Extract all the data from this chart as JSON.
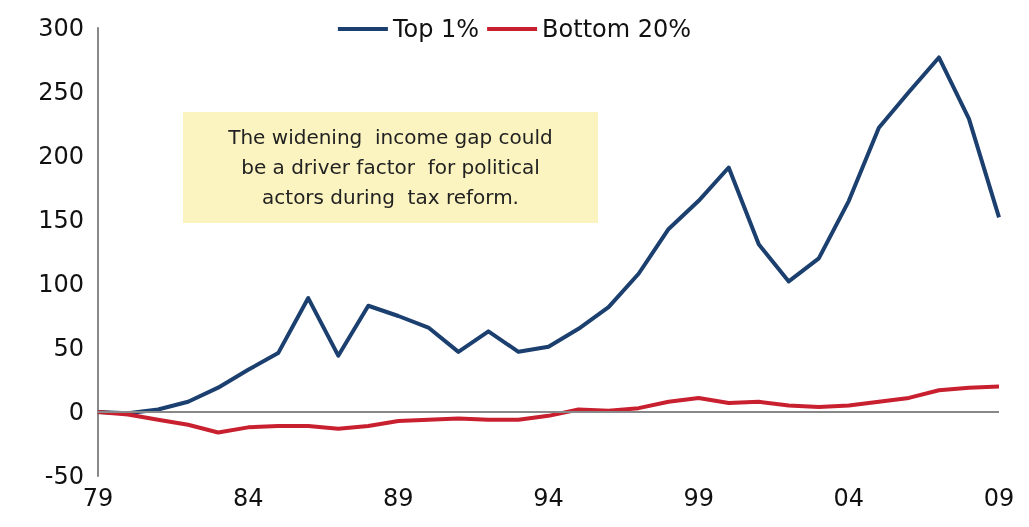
{
  "chart_data": {
    "type": "line",
    "categories": [
      "79",
      null,
      null,
      null,
      null,
      "84",
      null,
      null,
      null,
      null,
      "89",
      null,
      null,
      null,
      null,
      "94",
      null,
      null,
      null,
      null,
      "99",
      null,
      null,
      null,
      null,
      "04",
      null,
      null,
      null,
      null,
      "09"
    ],
    "series": [
      {
        "name": "Top 1%",
        "color": "#1b3f6e",
        "values": [
          0,
          -1,
          2,
          8,
          19,
          33,
          46,
          89,
          44,
          83,
          75,
          66,
          47,
          63,
          47,
          51,
          65,
          82,
          108,
          143,
          165,
          191,
          131,
          102,
          120,
          165,
          222,
          250,
          277,
          229,
          152
        ]
      },
      {
        "name": "Bottom 20%",
        "color": "#c8202f",
        "values": [
          0,
          -2,
          -6,
          -10,
          -16,
          -12,
          -11,
          -11,
          -13,
          -11,
          -7,
          -6,
          -5,
          -6,
          -6,
          -3,
          2,
          1,
          3,
          8,
          11,
          7,
          8,
          5,
          4,
          5,
          8,
          11,
          17,
          19,
          20
        ]
      }
    ],
    "ylim": [
      -50,
      300
    ],
    "yticks": [
      -50,
      0,
      50,
      100,
      150,
      200,
      250,
      300
    ],
    "ref_lines": [
      {
        "axis": "y",
        "value": 0,
        "color": "#888888"
      }
    ],
    "grid": false,
    "legend": "top",
    "marker": "none",
    "line_style": "solid",
    "annotations": [
      "The widening  income gap could\nbe a driver factor  for political\nactors during  tax reform."
    ]
  }
}
